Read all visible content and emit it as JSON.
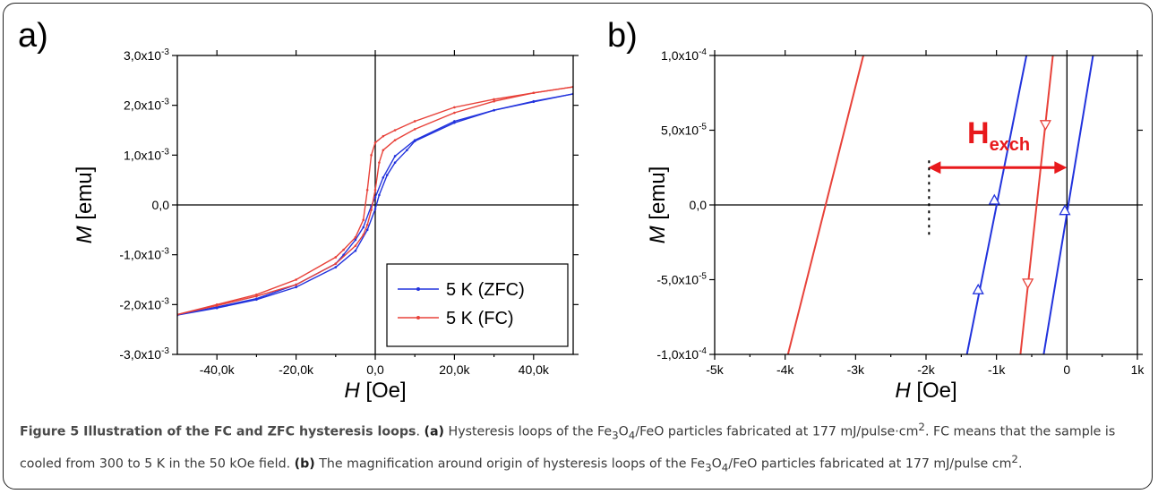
{
  "chart_data": [
    {
      "panel": "a)",
      "type": "line",
      "xlabel": "H [Oe]",
      "ylabel": "M [emu]",
      "xlim": [
        -50000,
        50000
      ],
      "ylim": [
        -0.003,
        0.003
      ],
      "x_ticks": [
        -40000,
        -20000,
        0,
        20000,
        40000
      ],
      "x_tick_labels": [
        "-40,0k",
        "-20,0k",
        "0,0",
        "20,0k",
        "40,0k"
      ],
      "y_ticks": [
        -0.003,
        -0.002,
        -0.001,
        0,
        0.001,
        0.002,
        0.003
      ],
      "y_tick_labels": [
        "-3,0x10-3",
        "-2,0x10-3",
        "-1,0x10-3",
        "0,0",
        "1,0x10-3",
        "2,0x10-3",
        "3,0x10-3"
      ],
      "legend_position": "bottom-right",
      "series": [
        {
          "name": "5 K (ZFC)",
          "color": "#2233dd",
          "branches": [
            {
              "x": [
                50000,
                40000,
                30000,
                20000,
                10000,
                5000,
                2000,
                0,
                -1000,
                -3000,
                -5000,
                -8000,
                -10000,
                -20000,
                -30000,
                -40000,
                -50000
              ],
              "y": [
                0.00223,
                0.00208,
                0.0019,
                0.00168,
                0.0013,
                0.00098,
                0.00055,
                0.00015,
                -2e-05,
                -0.00045,
                -0.0007,
                -0.001,
                -0.00118,
                -0.0016,
                -0.00188,
                -0.00205,
                -0.00221
              ]
            },
            {
              "x": [
                -50000,
                -40000,
                -30000,
                -20000,
                -10000,
                -5000,
                -2000,
                0,
                1000,
                3000,
                5000,
                8000,
                10000,
                20000,
                30000,
                40000,
                50000
              ],
              "y": [
                -0.00221,
                -0.00207,
                -0.0019,
                -0.00165,
                -0.00125,
                -0.00092,
                -0.0005,
                -8e-05,
                0.0002,
                0.0006,
                0.00085,
                0.0011,
                0.00128,
                0.00165,
                0.0019,
                0.00207,
                0.00223
              ]
            }
          ]
        },
        {
          "name": "5 K (FC)",
          "color": "#e8423a",
          "branches": [
            {
              "x": [
                50000,
                40000,
                30000,
                20000,
                10000,
                5000,
                2000,
                0,
                -1000,
                -2000,
                -3000,
                -5000,
                -8000,
                -10000,
                -20000,
                -30000,
                -40000,
                -50000
              ],
              "y": [
                0.00237,
                0.00225,
                0.00212,
                0.00196,
                0.00168,
                0.0015,
                0.00138,
                0.00125,
                0.001,
                0.0003,
                -0.0003,
                -0.00065,
                -0.0009,
                -0.00105,
                -0.0015,
                -0.0018,
                -0.002,
                -0.0022
              ]
            },
            {
              "x": [
                -50000,
                -40000,
                -30000,
                -20000,
                -10000,
                -5000,
                -3000,
                -2000,
                -1000,
                0,
                1000,
                2000,
                5000,
                10000,
                20000,
                30000,
                40000,
                50000
              ],
              "y": [
                -0.0022,
                -0.00202,
                -0.00183,
                -0.0016,
                -0.00118,
                -0.00082,
                -0.0006,
                -0.0004,
                -0.0001,
                0.0003,
                0.00085,
                0.0011,
                0.0013,
                0.00152,
                0.00185,
                0.00208,
                0.00225,
                0.00237
              ]
            }
          ]
        }
      ]
    },
    {
      "panel": "b)",
      "type": "line",
      "xlabel": "H [Oe]",
      "ylabel": "M [emu]",
      "xlim": [
        -5000,
        1000
      ],
      "ylim": [
        -0.0001,
        0.0001
      ],
      "x_ticks": [
        -5000,
        -4000,
        -3000,
        -2000,
        -1000,
        0,
        1000
      ],
      "x_tick_labels": [
        "-5k",
        "-4k",
        "-3k",
        "-2k",
        "-1k",
        "0",
        "1k"
      ],
      "y_ticks": [
        -0.0001,
        -5e-05,
        0,
        5e-05,
        0.0001
      ],
      "y_tick_labels": [
        "-1,0x10-4",
        "-5,0x10-5",
        "0,0",
        "5,0x10-5",
        "1,0x10-4"
      ],
      "series": [
        {
          "name": "",
          "color": "#2233dd",
          "segments": [
            {
              "x": [
                -1420,
                -575
              ],
              "y": [
                -0.0001,
                0.0001
              ]
            },
            {
              "x": [
                -330,
                370
              ],
              "y": [
                -0.0001,
                0.0001
              ]
            }
          ],
          "markers": [
            {
              "x": [
                -1260,
                -1030,
                -30
              ],
              "y": [
                -5.7e-05,
                3e-06,
                -4e-06
              ]
            }
          ]
        },
        {
          "name": "",
          "color": "#e8423a",
          "segments": [
            {
              "x": [
                -3960,
                -2890
              ],
              "y": [
                -0.0001,
                0.0001
              ]
            },
            {
              "x": [
                -660,
                -200
              ],
              "y": [
                -0.0001,
                0.0001
              ]
            }
          ],
          "markers": [
            {
              "x": [
                -555,
                -305
              ],
              "y": [
                -5.2e-05,
                5.4e-05
              ]
            }
          ]
        }
      ],
      "annotations": [
        {
          "text_main": "H",
          "text_sub": "exch",
          "color": "#e8191c",
          "arrow_from_x": -1970,
          "arrow_to_x": 0,
          "arrow_y": 2.5e-05
        }
      ]
    }
  ],
  "caption": {
    "title": "Figure 5 Illustration of the FC and ZFC hysteresis loops",
    "a_label": "(a)",
    "a_text_1": "Hysteresis loops of the Fe",
    "a_sub_1": "3",
    "a_text_2": "O",
    "a_sub_2": "4",
    "a_text_3": "/FeO particles fabricated at 177 mJ/pulse",
    "a_text_4": "cm",
    "a_sup_1": "2",
    "a_text_5": ". FC means that the sample is cooled from 300 to 5 K in the 50 kOe field.",
    "b_label": "(b)",
    "b_text_1": "The magnification around origin of hysteresis loops of the Fe",
    "b_sub_1": "3",
    "b_text_2": "O",
    "b_sub_2": "4",
    "b_text_3": "/FeO particles fabricated at 177 mJ/pulse cm",
    "b_sup_1": "2",
    "b_text_4": "."
  }
}
